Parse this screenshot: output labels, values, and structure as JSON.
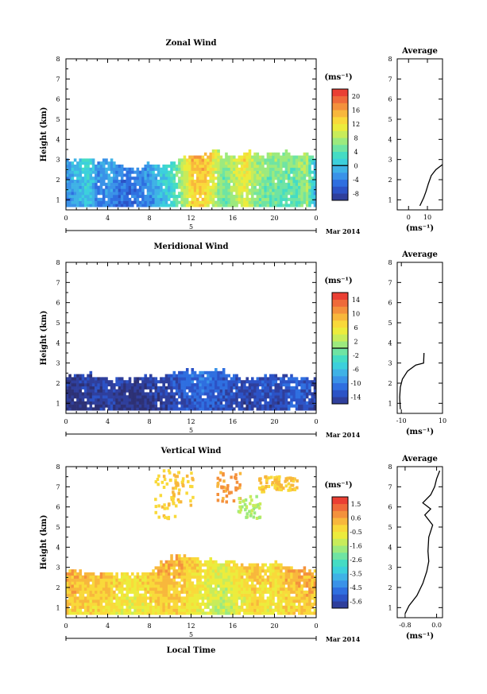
{
  "chart_data": [
    {
      "type": "heatmap",
      "title": "Zonal Wind",
      "ylabel": "Height (km)",
      "xlim": [
        0,
        24
      ],
      "ylim": [
        0.5,
        8
      ],
      "xticks": [
        "0",
        "4",
        "8",
        "12",
        "16",
        "20",
        "0"
      ],
      "yticks": [
        "1",
        "2",
        "3",
        "4",
        "5",
        "6",
        "7",
        "8"
      ],
      "date_marker": "5",
      "date_label": "Mar 2014",
      "colorbar": {
        "unit": "(ms⁻¹)",
        "ticks": [
          "20",
          "16",
          "12",
          "8",
          "4",
          "0",
          "-4",
          "-8"
        ],
        "range": [
          -10,
          22
        ],
        "zero_line": 0
      },
      "data_top_km": [
        2.9,
        3.0,
        3.0,
        2.8,
        2.9,
        2.7,
        2.6,
        2.5,
        2.8,
        2.6,
        2.7,
        3.1,
        3.1,
        3.2,
        3.3,
        3.3,
        3.0,
        3.4,
        3.2,
        3.1,
        3.4,
        3.3,
        3.1,
        3.3
      ],
      "data_values": [
        -2,
        0,
        2,
        -3,
        -1,
        -4,
        -4,
        -3,
        -2,
        1,
        3,
        8,
        14,
        15,
        11,
        6,
        9,
        12,
        8,
        6,
        6,
        5,
        6,
        8
      ],
      "average": {
        "title": "Average",
        "unit": "(ms⁻¹)",
        "xlim": [
          -6,
          18
        ],
        "xticks": [
          "0",
          "10"
        ],
        "profile": [
          [
            6.0,
            0.7
          ],
          [
            8.0,
            1.1
          ],
          [
            9.2,
            1.4
          ],
          [
            10.5,
            1.8
          ],
          [
            12.0,
            2.2
          ],
          [
            14.5,
            2.5
          ],
          [
            18.0,
            2.75
          ]
        ]
      }
    },
    {
      "type": "heatmap",
      "title": "Meridional Wind",
      "ylabel": "Height (km)",
      "xlim": [
        0,
        24
      ],
      "ylim": [
        0.5,
        8
      ],
      "xticks": [
        "0",
        "4",
        "8",
        "12",
        "16",
        "20",
        "0"
      ],
      "yticks": [
        "1",
        "2",
        "3",
        "4",
        "5",
        "6",
        "7",
        "8"
      ],
      "date_marker": "5",
      "date_label": "Mar 2014",
      "colorbar": {
        "unit": "(ms⁻¹)",
        "ticks": [
          "14",
          "10",
          "6",
          "2",
          "-2",
          "-6",
          "-10",
          "-14"
        ],
        "range": [
          -16,
          16
        ],
        "zero_line": 0
      },
      "data_top_km": [
        2.3,
        2.4,
        2.4,
        2.3,
        2.2,
        2.2,
        2.1,
        2.3,
        2.3,
        2.3,
        2.4,
        2.5,
        2.6,
        2.5,
        2.6,
        2.5,
        2.3,
        2.1,
        2.2,
        2.3,
        2.4,
        2.3,
        2.2,
        2.1
      ],
      "data_values": [
        -15,
        -15,
        -14,
        -14,
        -13,
        -14,
        -15,
        -15,
        -14,
        -14,
        -13,
        -12,
        -11,
        -10,
        -11,
        -12,
        -12,
        -13,
        -13,
        -12,
        -13,
        -12,
        -11,
        -12
      ],
      "average": {
        "title": "Average",
        "unit": "(ms⁻¹)",
        "xlim": [
          -12,
          10
        ],
        "xticks": [
          "-10",
          "10"
        ],
        "profile": [
          [
            -10.5,
            0.7
          ],
          [
            -10.8,
            1.3
          ],
          [
            -10.5,
            1.8
          ],
          [
            -9.5,
            2.2
          ],
          [
            -7.0,
            2.6
          ],
          [
            -3.0,
            2.9
          ],
          [
            0.8,
            3.0
          ],
          [
            1.0,
            3.5
          ]
        ]
      }
    },
    {
      "type": "heatmap",
      "title": "Vertical Wind",
      "ylabel": "Height (km)",
      "xlabel": "Local Time",
      "xlim": [
        0,
        24
      ],
      "ylim": [
        0.5,
        8
      ],
      "xticks": [
        "0",
        "4",
        "8",
        "12",
        "16",
        "20",
        "0"
      ],
      "yticks": [
        "1",
        "2",
        "3",
        "4",
        "5",
        "6",
        "7",
        "8"
      ],
      "date_marker": "5",
      "date_label": "Mar 2014",
      "colorbar": {
        "unit": "(ms⁻¹)",
        "ticks": [
          "1.5",
          "0.6",
          "-0.5",
          "-1.6",
          "-2.6",
          "-3.5",
          "-4.5",
          "-5.6"
        ],
        "range": [
          -6,
          2
        ],
        "zero_line": null
      },
      "data_top_km": [
        2.7,
        2.8,
        2.6,
        2.6,
        2.7,
        2.5,
        2.6,
        2.6,
        2.8,
        3.2,
        3.4,
        3.6,
        3.5,
        3.2,
        3.3,
        3.1,
        3.2,
        3.0,
        3.1,
        3.1,
        3.1,
        3.0,
        2.9,
        2.8
      ],
      "data_values": [
        0.2,
        0.3,
        0.2,
        0.1,
        0.0,
        -0.2,
        -0.4,
        -0.3,
        0.0,
        0.2,
        0.3,
        0.1,
        -0.2,
        -0.5,
        -0.8,
        -1.0,
        -0.6,
        -0.3,
        0.0,
        -0.2,
        -0.3,
        0.1,
        0.2,
        0.4
      ],
      "average": {
        "title": "Average",
        "unit": "(ms⁻¹)",
        "xlim": [
          -1.0,
          0.15
        ],
        "xticks": [
          "-0.8",
          "0.0"
        ],
        "profile": [
          [
            -0.8,
            0.7
          ],
          [
            -0.7,
            1.1
          ],
          [
            -0.5,
            1.6
          ],
          [
            -0.35,
            2.2
          ],
          [
            -0.25,
            2.8
          ],
          [
            -0.2,
            3.3
          ],
          [
            -0.22,
            3.8
          ],
          [
            -0.2,
            4.5
          ],
          [
            -0.1,
            5.1
          ],
          [
            -0.3,
            5.6
          ],
          [
            -0.15,
            5.9
          ],
          [
            -0.35,
            6.2
          ],
          [
            -0.15,
            6.6
          ],
          [
            -0.05,
            7.0
          ],
          [
            0.0,
            7.4
          ],
          [
            0.08,
            7.8
          ]
        ]
      }
    }
  ]
}
